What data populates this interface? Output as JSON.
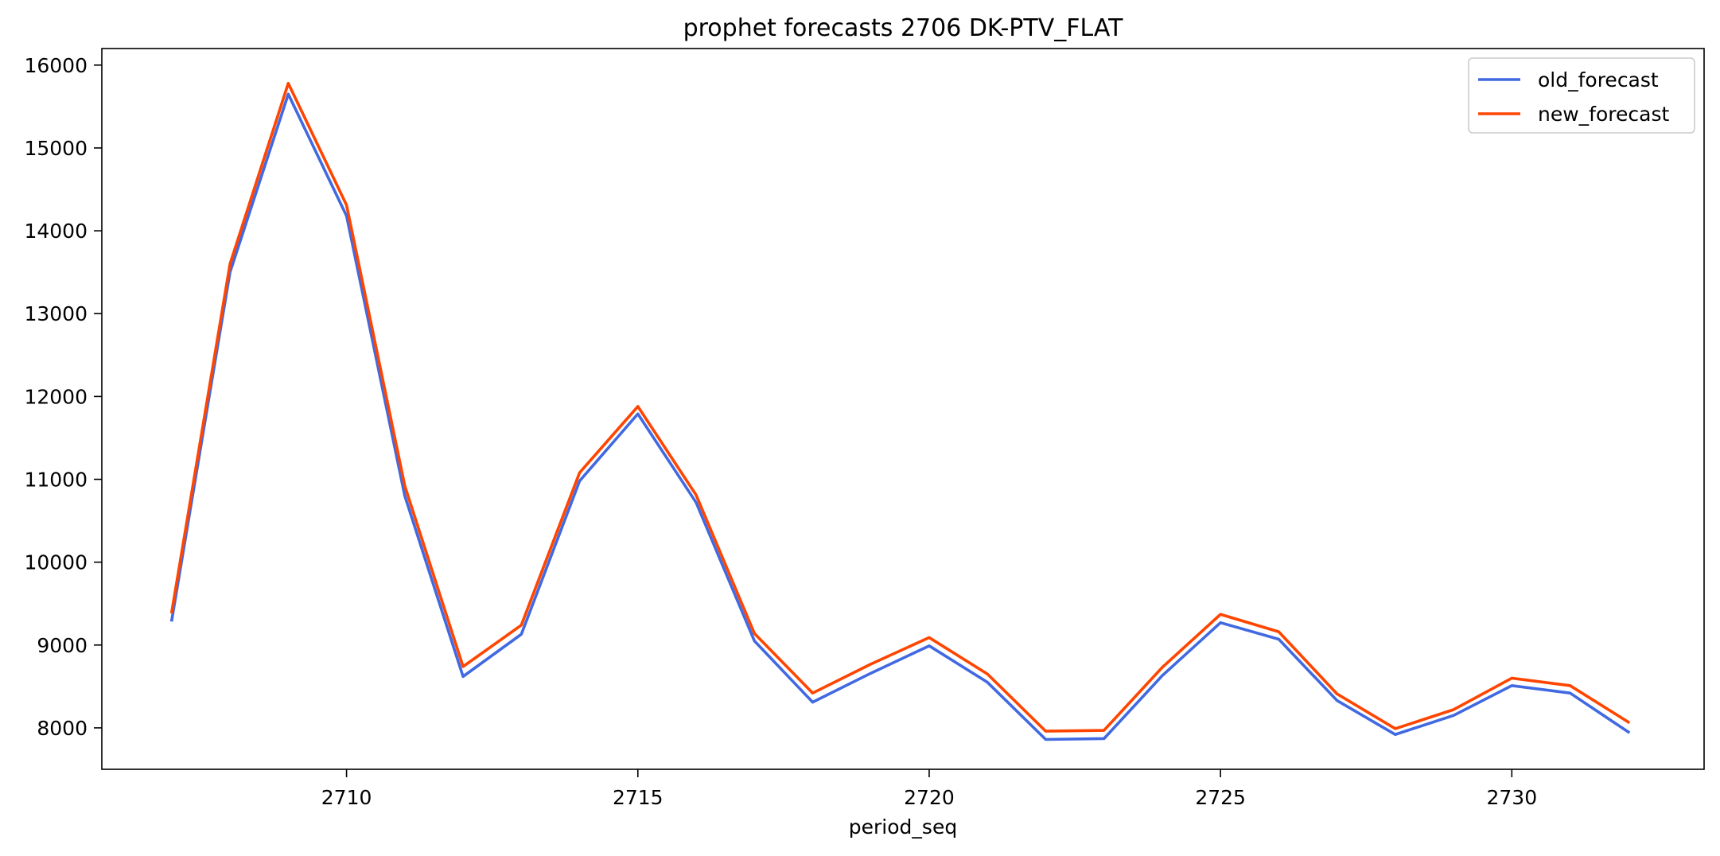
{
  "chart_data": {
    "type": "line",
    "title": "prophet forecasts 2706 DK-PTV_FLAT",
    "xlabel": "period_seq",
    "ylabel": "",
    "xlim": [
      2705.8,
      2733.3
    ],
    "ylim": [
      7500,
      16200
    ],
    "xticks": [
      2710,
      2715,
      2720,
      2725,
      2730
    ],
    "yticks": [
      8000,
      9000,
      10000,
      11000,
      12000,
      13000,
      14000,
      15000,
      16000
    ],
    "grid": false,
    "legend_position": "top-right",
    "x": [
      2707,
      2708,
      2709,
      2710,
      2711,
      2712,
      2713,
      2714,
      2715,
      2716,
      2717,
      2718,
      2719,
      2720,
      2721,
      2722,
      2723,
      2724,
      2725,
      2726,
      2727,
      2728,
      2729,
      2730,
      2731,
      2732
    ],
    "series": [
      {
        "name": "old_forecast",
        "color": "#4169e1",
        "values": [
          9300,
          13500,
          15650,
          14180,
          10800,
          8620,
          9130,
          10980,
          11790,
          10720,
          9050,
          8310,
          8660,
          8990,
          8550,
          7860,
          7870,
          8630,
          9270,
          9070,
          8330,
          7920,
          8150,
          8510,
          8420,
          7950
        ]
      },
      {
        "name": "new_forecast",
        "color": "#ff4500",
        "values": [
          9400,
          13600,
          15780,
          14310,
          10920,
          8740,
          9240,
          11080,
          11880,
          10810,
          9140,
          8420,
          8770,
          9090,
          8650,
          7960,
          7970,
          8730,
          9370,
          9160,
          8410,
          7990,
          8220,
          8600,
          8510,
          8070
        ]
      }
    ]
  }
}
